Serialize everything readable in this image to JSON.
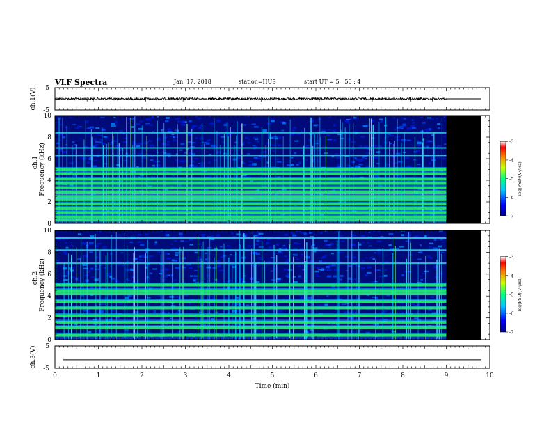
{
  "header": {
    "title": "VLF Spectra",
    "date": "Jan. 17, 2018",
    "station": "station=HUS",
    "start": "start  UT =   5 : 50 : 4"
  },
  "chart_data": [
    {
      "type": "line",
      "title": "",
      "ylabel": "ch.1(V)",
      "ylim": [
        -5,
        5
      ],
      "yticks": [
        "5",
        "-5"
      ],
      "xlim": [
        0,
        10
      ],
      "series_note": "waveform amplitude trace; data to t=9 min, flat afterwards",
      "data_end": 9.0
    },
    {
      "type": "heatmap",
      "ylabel_top": "ch.1",
      "ylabel": "Frequency  (kHz)",
      "xlim": [
        0,
        10
      ],
      "ylim": [
        0,
        10
      ],
      "yticks": [
        "0",
        "2",
        "4",
        "6",
        "8",
        "10"
      ],
      "data_end": 9.0,
      "after_end_color": "#000000",
      "narrowband_lines_khz": [
        0.3,
        0.6,
        1.0,
        1.4,
        1.8,
        2.2,
        2.5,
        2.9,
        3.3,
        3.7,
        4.1,
        4.6,
        5.0,
        6.3,
        7.0,
        8.4
      ],
      "colorbar": {
        "label": "log(PSD)(V²/Hz)",
        "min": -7,
        "max": -3,
        "ticks": [
          "-3",
          "-4",
          "-5",
          "-6",
          "-7"
        ]
      }
    },
    {
      "type": "heatmap",
      "ylabel_top": "ch.2",
      "ylabel": "Frequency  (kHz)",
      "xlim": [
        0,
        10
      ],
      "ylim": [
        0,
        10
      ],
      "yticks": [
        "0",
        "2",
        "4",
        "6",
        "8",
        "10"
      ],
      "data_end": 9.0,
      "after_end_color": "#000000",
      "narrowband_lines_khz": [
        0.4,
        1.1,
        1.6,
        2.2,
        2.9,
        3.5,
        4.2,
        4.5,
        5.0,
        7.0,
        8.2,
        9.3
      ],
      "colorbar": {
        "label": "log(PSD)(V²/Hz)",
        "min": -7,
        "max": -3,
        "ticks": [
          "-3",
          "-4",
          "-5",
          "-6",
          "-7"
        ]
      }
    },
    {
      "type": "line",
      "title": "",
      "ylabel": "ch.3(V)",
      "ylim": [
        -5,
        5
      ],
      "yticks": [
        "5",
        "-5"
      ],
      "xlim": [
        0,
        10
      ],
      "series_note": "flat trace",
      "value": -1.2
    }
  ],
  "xaxis": {
    "label": "Time  (min)",
    "ticks": [
      "0",
      "1",
      "2",
      "3",
      "4",
      "5",
      "6",
      "7",
      "8",
      "9",
      "10"
    ]
  }
}
